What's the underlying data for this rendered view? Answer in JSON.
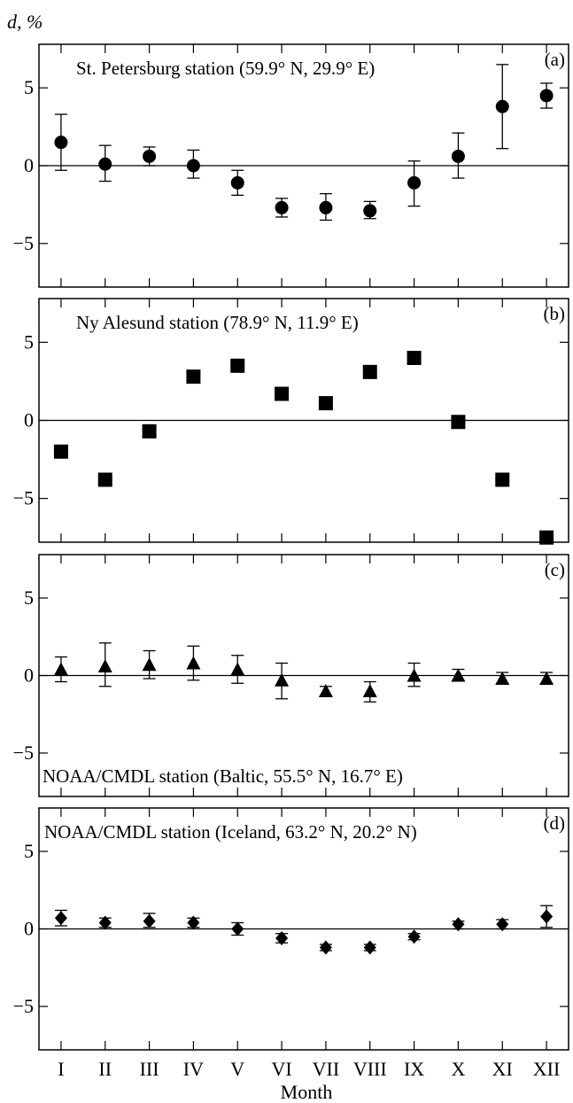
{
  "chart_data": {
    "type": "scatter",
    "ylabel": "d, %",
    "ylabel_var": "d",
    "ylabel_unit": ", %",
    "xlabel": "Month",
    "categories": [
      "I",
      "II",
      "III",
      "IV",
      "V",
      "VI",
      "VII",
      "VIII",
      "IX",
      "X",
      "XI",
      "XII"
    ],
    "ylim": [
      -7.8,
      7.8
    ],
    "yticks": [
      -5,
      0,
      5
    ],
    "grid": false,
    "panels": [
      {
        "letter": "(a)",
        "title": "St. Petersburg station (59.9° N, 29.9° E)",
        "title_position": "top-left",
        "marker": "circle",
        "values": [
          1.5,
          0.1,
          0.6,
          0.0,
          -1.1,
          -2.7,
          -2.7,
          -2.9,
          -1.1,
          0.6,
          3.8,
          4.5
        ],
        "error_low": [
          -0.3,
          -1.0,
          0.0,
          -0.8,
          -1.9,
          -3.3,
          -3.5,
          -3.4,
          -2.6,
          -0.8,
          1.1,
          3.7
        ],
        "error_high": [
          3.3,
          1.3,
          1.2,
          1.0,
          -0.3,
          -2.1,
          -1.8,
          -2.3,
          0.3,
          2.1,
          6.5,
          5.3
        ]
      },
      {
        "letter": "(b)",
        "title": "Ny Alesund station (78.9° N, 11.9° E)",
        "title_position": "top-left",
        "marker": "square",
        "values": [
          -2.0,
          -3.8,
          -0.7,
          2.8,
          3.5,
          1.7,
          1.1,
          3.1,
          4.0,
          -0.1,
          -3.8,
          -7.5
        ]
      },
      {
        "letter": "(c)",
        "title": "NOAA/CMDL station (Baltic, 55.5° N, 16.7° E)",
        "title_position": "bottom-left",
        "marker": "triangle",
        "values": [
          0.4,
          0.6,
          0.7,
          0.8,
          0.4,
          -0.3,
          -1.0,
          -1.0,
          0.0,
          0.0,
          -0.2,
          -0.2
        ],
        "error_low": [
          -0.4,
          -0.7,
          -0.2,
          -0.3,
          -0.5,
          -1.5,
          -1.3,
          -1.7,
          -0.7,
          -0.3,
          -0.5,
          -0.5
        ],
        "error_high": [
          1.2,
          2.1,
          1.6,
          1.9,
          1.3,
          0.8,
          -0.7,
          -0.4,
          0.8,
          0.4,
          0.2,
          0.2
        ]
      },
      {
        "letter": "(d)",
        "title": "NOAA/CMDL station (Iceland, 63.2° N, 20.2° N)",
        "title_position": "top-left",
        "marker": "diamond",
        "values": [
          0.7,
          0.4,
          0.5,
          0.4,
          0.0,
          -0.6,
          -1.2,
          -1.2,
          -0.5,
          0.3,
          0.3,
          0.8
        ],
        "error_low": [
          0.2,
          0.1,
          0.1,
          0.1,
          -0.4,
          -0.9,
          -1.4,
          -1.4,
          -0.7,
          0.0,
          0.0,
          0.1
        ],
        "error_high": [
          1.2,
          0.7,
          1.0,
          0.7,
          0.4,
          -0.3,
          -1.0,
          -1.0,
          -0.3,
          0.5,
          0.6,
          1.5
        ]
      }
    ]
  }
}
